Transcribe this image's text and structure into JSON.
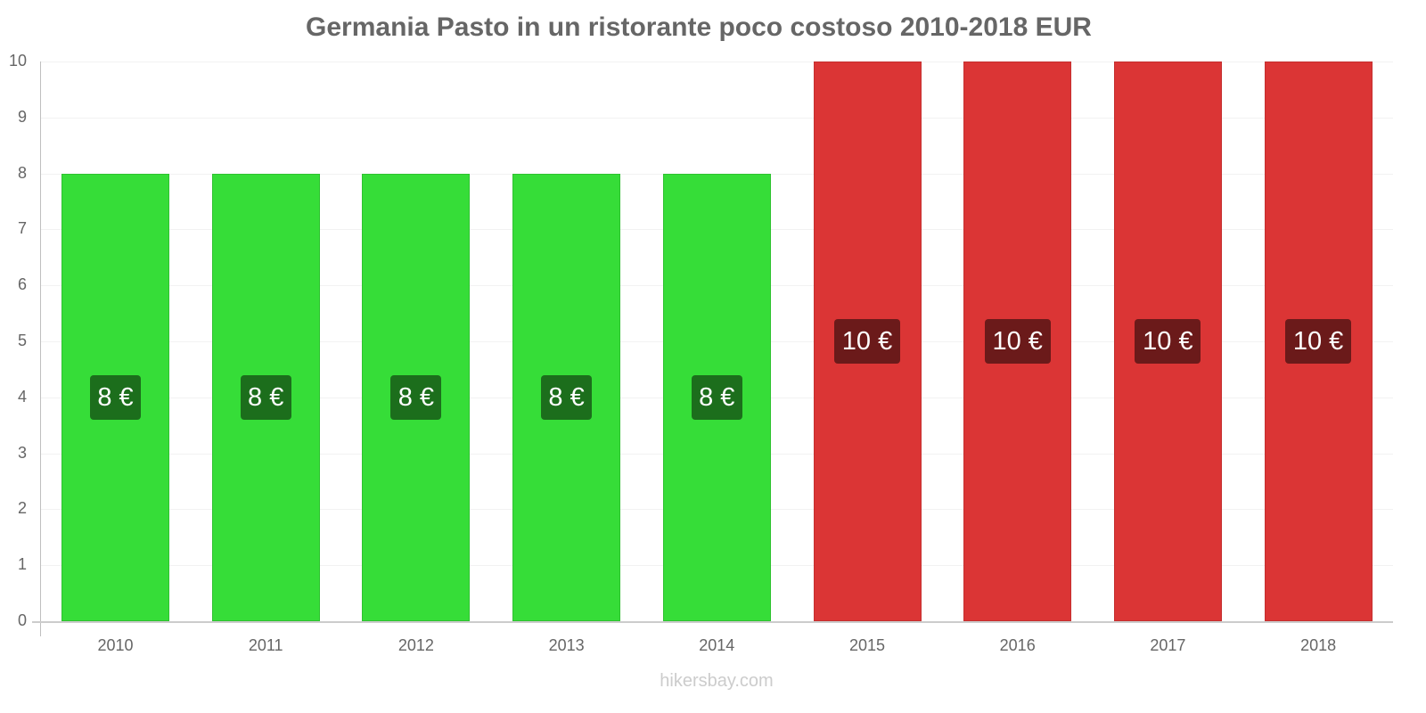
{
  "chart_data": {
    "type": "bar",
    "title": "Germania Pasto in un ristorante poco costoso 2010-2018 EUR",
    "xlabel": "",
    "ylabel": "",
    "categories": [
      "2010",
      "2011",
      "2012",
      "2013",
      "2014",
      "2015",
      "2016",
      "2017",
      "2018"
    ],
    "values": [
      8,
      8,
      8,
      8,
      8,
      10,
      10,
      10,
      10
    ],
    "data_labels": [
      "8 €",
      "8 €",
      "8 €",
      "8 €",
      "8 €",
      "10 €",
      "10 €",
      "10 €",
      "10 €"
    ],
    "bar_colors": [
      "#36dd38",
      "#36dd38",
      "#36dd38",
      "#36dd38",
      "#36dd38",
      "#db3535",
      "#db3535",
      "#db3535",
      "#db3535"
    ],
    "label_colors": [
      "#1c6e1c",
      "#1c6e1c",
      "#1c6e1c",
      "#1c6e1c",
      "#1c6e1c",
      "#6b1a1a",
      "#6b1a1a",
      "#6b1a1a",
      "#6b1a1a"
    ],
    "ylim": [
      0,
      10
    ],
    "yticks": [
      "0",
      "1",
      "2",
      "3",
      "4",
      "5",
      "6",
      "7",
      "8",
      "9",
      "10"
    ],
    "grid": true,
    "legend": null
  },
  "footer": {
    "watermark": "hikersbay.com"
  }
}
